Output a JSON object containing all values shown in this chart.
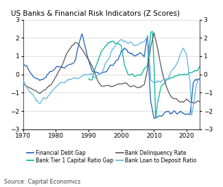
{
  "title": "US Banks & Financial Risk Indicators (Z Scores)",
  "source": "Source: Capital Economics",
  "ylim": [
    -3,
    3
  ],
  "yticks": [
    -3,
    -2,
    -1,
    0,
    1,
    2,
    3
  ],
  "xlim": [
    1970,
    2024
  ],
  "xticks": [
    1970,
    1980,
    1990,
    2000,
    2010,
    2020
  ],
  "colors": {
    "financial_debt_gap": "#1a5eb8",
    "tier1_capital": "#00b396",
    "delinquency": "#555555",
    "loan_deposit": "#5ab4e5"
  },
  "legend_labels": [
    "Financial Debt Gap",
    "Bank Tier 1 Capital Ratio Gap",
    "Bank Delinquency Rate",
    "Bank Loan to Deposit Ratio"
  ],
  "financial_debt_gap_ctrl": [
    [
      1970,
      0.5
    ],
    [
      1971,
      0.4
    ],
    [
      1972,
      0.1
    ],
    [
      1973,
      0.0
    ],
    [
      1974,
      -0.1
    ],
    [
      1975,
      -0.3
    ],
    [
      1976,
      -0.2
    ],
    [
      1977,
      -0.1
    ],
    [
      1978,
      0.1
    ],
    [
      1979,
      0.3
    ],
    [
      1980,
      0.4
    ],
    [
      1981,
      0.5
    ],
    [
      1982,
      0.4
    ],
    [
      1983,
      0.4
    ],
    [
      1984,
      0.5
    ],
    [
      1985,
      0.6
    ],
    [
      1986,
      0.8
    ],
    [
      1987,
      1.6
    ],
    [
      1988,
      2.2
    ],
    [
      1989,
      1.5
    ],
    [
      1990,
      0.8
    ],
    [
      1991,
      0.2
    ],
    [
      1992,
      0.1
    ],
    [
      1993,
      0.1
    ],
    [
      1994,
      0.1
    ],
    [
      1995,
      0.2
    ],
    [
      1996,
      0.3
    ],
    [
      1997,
      0.5
    ],
    [
      1998,
      0.6
    ],
    [
      1999,
      0.8
    ],
    [
      2000,
      1.2
    ],
    [
      2001,
      1.4
    ],
    [
      2002,
      1.3
    ],
    [
      2003,
      1.2
    ],
    [
      2004,
      1.0
    ],
    [
      2005,
      1.1
    ],
    [
      2006,
      1.2
    ],
    [
      2007,
      1.0
    ],
    [
      2008,
      2.1
    ],
    [
      2008.5,
      0.0
    ],
    [
      2009,
      -1.5
    ],
    [
      2010,
      -2.4
    ],
    [
      2011,
      -2.4
    ],
    [
      2012,
      -2.3
    ],
    [
      2013,
      -2.1
    ],
    [
      2014,
      -2.1
    ],
    [
      2015,
      -2.2
    ],
    [
      2016,
      -2.0
    ],
    [
      2017,
      -2.1
    ],
    [
      2018,
      -2.0
    ],
    [
      2019,
      -2.1
    ],
    [
      2020,
      -2.2
    ],
    [
      2021,
      -2.2
    ],
    [
      2022,
      -0.6
    ],
    [
      2023,
      -0.4
    ],
    [
      2024,
      -0.2
    ]
  ],
  "tier1_capital_ctrl": [
    [
      1990,
      -0.3
    ],
    [
      1991,
      -0.3
    ],
    [
      1992,
      0.3
    ],
    [
      1993,
      0.8
    ],
    [
      1994,
      1.2
    ],
    [
      1995,
      1.5
    ],
    [
      1996,
      1.7
    ],
    [
      1997,
      1.8
    ],
    [
      1998,
      1.7
    ],
    [
      1999,
      1.7
    ],
    [
      2000,
      1.6
    ],
    [
      2001,
      0.5
    ],
    [
      2002,
      0.1
    ],
    [
      2003,
      0.0
    ],
    [
      2004,
      -0.1
    ],
    [
      2005,
      0.0
    ],
    [
      2006,
      -0.1
    ],
    [
      2007,
      0.3
    ],
    [
      2008,
      0.5
    ],
    [
      2009,
      2.2
    ],
    [
      2009.5,
      2.3
    ],
    [
      2010,
      0.5
    ],
    [
      2010.5,
      -2.4
    ],
    [
      2011,
      -1.5
    ],
    [
      2012,
      -0.8
    ],
    [
      2013,
      -0.5
    ],
    [
      2014,
      -0.3
    ],
    [
      2015,
      -0.2
    ],
    [
      2016,
      -0.1
    ],
    [
      2017,
      -0.05
    ],
    [
      2018,
      0.0
    ],
    [
      2019,
      0.0
    ],
    [
      2020,
      -0.1
    ],
    [
      2021,
      0.0
    ],
    [
      2022,
      0.1
    ],
    [
      2023,
      0.3
    ],
    [
      2024,
      0.4
    ]
  ],
  "delinquency_ctrl": [
    [
      1970,
      -0.5
    ],
    [
      1971,
      -0.6
    ],
    [
      1972,
      -0.7
    ],
    [
      1973,
      -0.8
    ],
    [
      1974,
      -0.9
    ],
    [
      1975,
      -1.0
    ],
    [
      1976,
      -0.9
    ],
    [
      1977,
      -0.8
    ],
    [
      1978,
      -0.6
    ],
    [
      1979,
      -0.4
    ],
    [
      1980,
      -0.2
    ],
    [
      1981,
      0.2
    ],
    [
      1982,
      0.6
    ],
    [
      1983,
      1.0
    ],
    [
      1984,
      1.3
    ],
    [
      1985,
      1.6
    ],
    [
      1986,
      1.75
    ],
    [
      1987,
      1.65
    ],
    [
      1988,
      1.4
    ],
    [
      1989,
      1.1
    ],
    [
      1990,
      0.8
    ],
    [
      1991,
      0.5
    ],
    [
      1992,
      0.1
    ],
    [
      1993,
      -0.4
    ],
    [
      1994,
      -0.6
    ],
    [
      1995,
      -0.6
    ],
    [
      1996,
      -0.6
    ],
    [
      1997,
      -0.65
    ],
    [
      1998,
      -0.6
    ],
    [
      1999,
      -0.55
    ],
    [
      2000,
      -0.5
    ],
    [
      2001,
      -0.5
    ],
    [
      2002,
      -0.55
    ],
    [
      2003,
      -0.6
    ],
    [
      2004,
      -0.65
    ],
    [
      2005,
      -0.7
    ],
    [
      2006,
      -0.7
    ],
    [
      2007,
      -0.6
    ],
    [
      2008,
      0.3
    ],
    [
      2009,
      1.5
    ],
    [
      2010,
      2.3
    ],
    [
      2011,
      1.5
    ],
    [
      2012,
      0.5
    ],
    [
      2013,
      -0.2
    ],
    [
      2014,
      -0.8
    ],
    [
      2015,
      -1.2
    ],
    [
      2016,
      -1.35
    ],
    [
      2017,
      -1.4
    ],
    [
      2018,
      -1.5
    ],
    [
      2019,
      -1.5
    ],
    [
      2020,
      -1.3
    ],
    [
      2021,
      -1.5
    ],
    [
      2022,
      -1.5
    ],
    [
      2023,
      -1.5
    ],
    [
      2024,
      -1.5
    ]
  ],
  "loan_deposit_ctrl": [
    [
      1970,
      -0.4
    ],
    [
      1971,
      -0.7
    ],
    [
      1972,
      -0.9
    ],
    [
      1973,
      -1.1
    ],
    [
      1974,
      -1.4
    ],
    [
      1975,
      -1.5
    ],
    [
      1976,
      -1.4
    ],
    [
      1977,
      -1.3
    ],
    [
      1978,
      -1.1
    ],
    [
      1979,
      -0.9
    ],
    [
      1980,
      -0.7
    ],
    [
      1981,
      -0.5
    ],
    [
      1982,
      -0.4
    ],
    [
      1983,
      -0.35
    ],
    [
      1984,
      -0.3
    ],
    [
      1985,
      -0.25
    ],
    [
      1986,
      -0.2
    ],
    [
      1987,
      -0.15
    ],
    [
      1988,
      -0.1
    ],
    [
      1989,
      0.05
    ],
    [
      1990,
      0.0
    ],
    [
      1991,
      -0.05
    ],
    [
      1992,
      -0.1
    ],
    [
      1993,
      0.0
    ],
    [
      1994,
      0.2
    ],
    [
      1995,
      0.5
    ],
    [
      1996,
      0.8
    ],
    [
      1997,
      1.2
    ],
    [
      1998,
      1.5
    ],
    [
      1999,
      1.7
    ],
    [
      2000,
      1.9
    ],
    [
      2001,
      1.85
    ],
    [
      2002,
      1.7
    ],
    [
      2003,
      1.7
    ],
    [
      2004,
      1.6
    ],
    [
      2005,
      1.65
    ],
    [
      2006,
      1.7
    ],
    [
      2007,
      1.8
    ],
    [
      2008,
      2.1
    ],
    [
      2008.75,
      0.5
    ],
    [
      2009,
      -0.3
    ],
    [
      2010,
      -0.5
    ],
    [
      2011,
      -0.4
    ],
    [
      2012,
      -0.5
    ],
    [
      2013,
      -0.3
    ],
    [
      2014,
      -0.2
    ],
    [
      2015,
      0.1
    ],
    [
      2016,
      0.3
    ],
    [
      2017,
      0.6
    ],
    [
      2018,
      1.0
    ],
    [
      2019,
      1.5
    ],
    [
      2020,
      1.0
    ],
    [
      2021,
      -0.4
    ],
    [
      2021.5,
      -2.2
    ],
    [
      2022,
      -1.8
    ],
    [
      2023,
      -0.5
    ],
    [
      2024,
      -0.3
    ]
  ]
}
